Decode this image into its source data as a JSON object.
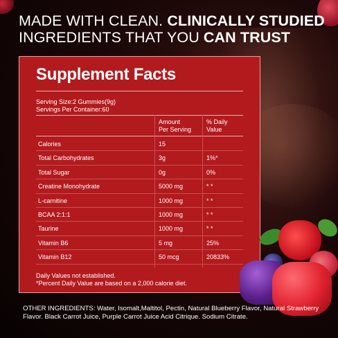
{
  "headline": {
    "line1_regular": "MADE WITH CLEAN. ",
    "line1_bold": "CLINICALLY STUDIED",
    "line2_regular": "INGREDIENTS THAT YOU ",
    "line2_bold": "CAN TRUST"
  },
  "facts": {
    "title": "Supplement Facts",
    "serving_size": "Serving Size:2 Gummies(9g)",
    "servings_per_container": "Servings Per Container:60",
    "col_amount_1": "Amount",
    "col_amount_2": "Per Serving",
    "col_dv_1": "% Daily",
    "col_dv_2": "Value",
    "rows": [
      {
        "name": "Calories",
        "amount": "15",
        "dv": ""
      },
      {
        "name": "Total Carbohydrates",
        "amount": "3g",
        "dv": "1%*"
      },
      {
        "name": "Total Sugar",
        "amount": "0g",
        "dv": "0%"
      },
      {
        "name": "Creatine Monohydrate",
        "amount": "5000 mg",
        "dv": "* *"
      },
      {
        "name": "L-carnitine",
        "amount": "1000 mg",
        "dv": "* *"
      },
      {
        "name": "BCAA 2:1:1",
        "amount": "1000 mg",
        "dv": "* *"
      },
      {
        "name": "Taurine",
        "amount": "1000 mg",
        "dv": "* *"
      },
      {
        "name": "Vitamin B6",
        "amount": "5 mg",
        "dv": "25%"
      },
      {
        "name": "Vitamin B12",
        "amount": "50 mcg",
        "dv": "20833%"
      }
    ],
    "footnote_1": "Daily Values not established.",
    "footnote_2": "*Percent Daily Value are based on a 2,000 calorie diet."
  },
  "other_ingredients": "OTHER INGREDIENTS: Water, Isomalt,Maltitol, Pectin, Natural Blueberry Flavor, Natural Strawberry Flavor. Black Carrot Juice, Purple Carrot Juice Acid Citrique. Sodium Citrate.",
  "colors": {
    "panel": "#b31a1e",
    "background": "#0c0303"
  },
  "icons": [
    "strawberry-image",
    "purple-gummy-image",
    "red-gummy-image",
    "bodybuilder-image"
  ]
}
